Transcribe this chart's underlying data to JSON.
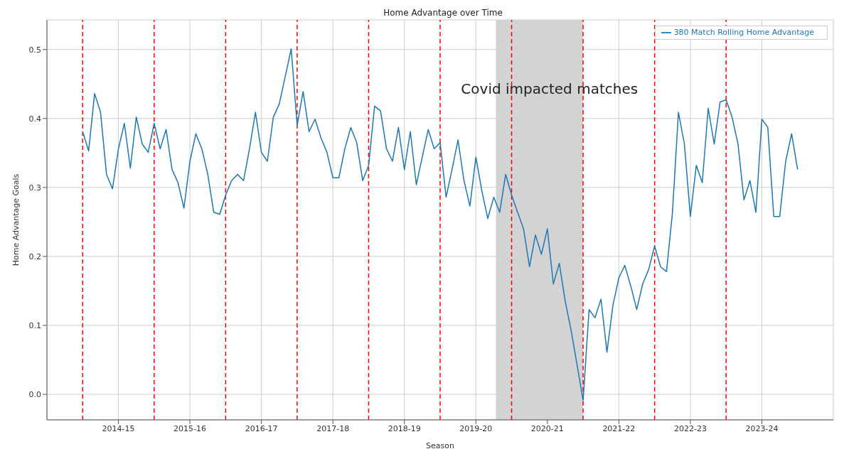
{
  "chart_data": {
    "type": "line",
    "title": "Home Advantage over Time",
    "xlabel": "Season",
    "ylabel": "Home Advantage Goals",
    "categories": [
      null,
      null,
      null,
      null,
      null,
      null,
      "2014-15",
      null,
      null,
      null,
      null,
      null,
      null,
      null,
      null,
      null,
      null,
      null,
      "2015-16",
      null,
      null,
      null,
      null,
      null,
      null,
      null,
      null,
      null,
      null,
      null,
      "2016-17",
      null,
      null,
      null,
      null,
      null,
      null,
      null,
      null,
      null,
      null,
      null,
      "2017-18",
      null,
      null,
      null,
      null,
      null,
      null,
      null,
      null,
      null,
      null,
      null,
      "2018-19",
      null,
      null,
      null,
      null,
      null,
      null,
      null,
      null,
      null,
      null,
      null,
      "2019-20",
      null,
      null,
      null,
      null,
      null,
      null,
      null,
      null,
      null,
      null,
      null,
      "2020-21",
      null,
      null,
      null,
      null,
      null,
      null,
      null,
      null,
      null,
      null,
      null,
      "2021-22",
      null,
      null,
      null,
      null,
      null,
      null,
      null,
      null,
      null,
      null,
      null,
      "2022-23",
      null,
      null,
      null,
      null,
      null,
      null,
      null,
      null,
      null,
      null,
      null,
      "2023-24",
      null,
      null,
      null,
      null,
      null,
      null
    ],
    "ylim": [
      -0.037,
      0.543
    ],
    "yticks": [
      {
        "value": 0,
        "label": "0.0"
      },
      0.1,
      0.2,
      0.3,
      0.4,
      0.5
    ],
    "grid": true,
    "legend": "top right",
    "line_style": "solid",
    "series": [
      {
        "name": "380 Match Rolling Home Advantage",
        "color": "#1f77b4",
        "values": [
          0.381,
          0.353,
          0.436,
          0.409,
          0.319,
          0.298,
          0.356,
          0.393,
          0.328,
          0.402,
          0.363,
          0.351,
          0.393,
          0.356,
          0.384,
          0.326,
          0.307,
          0.27,
          0.338,
          0.378,
          0.356,
          0.319,
          0.264,
          0.261,
          0.289,
          0.31,
          0.319,
          0.31,
          0.356,
          0.409,
          0.351,
          0.338,
          0.402,
          0.421,
          0.461,
          0.501,
          0.39,
          0.439,
          0.381,
          0.399,
          0.372,
          0.351,
          0.314,
          0.314,
          0.356,
          0.387,
          0.365,
          0.31,
          0.332,
          0.418,
          0.411,
          0.356,
          0.338,
          0.387,
          0.326,
          0.381,
          0.304,
          0.344,
          0.384,
          0.356,
          0.365,
          0.286,
          0.326,
          0.369,
          0.31,
          0.273,
          0.344,
          0.295,
          0.255,
          0.286,
          0.264,
          0.319,
          0.289,
          0.264,
          0.24,
          0.185,
          0.231,
          0.203,
          0.24,
          0.16,
          0.19,
          0.135,
          0.092,
          0.042,
          -0.009,
          0.123,
          0.111,
          0.138,
          0.061,
          0.129,
          0.169,
          0.187,
          0.157,
          0.123,
          0.16,
          0.181,
          0.215,
          0.185,
          0.178,
          0.264,
          0.409,
          0.363,
          0.258,
          0.332,
          0.307,
          0.415,
          0.363,
          0.424,
          0.427,
          0.402,
          0.363,
          0.282,
          0.31,
          0.264,
          0.399,
          0.387,
          0.258,
          0.258,
          0.338,
          0.378,
          0.326
        ]
      }
    ],
    "annotations": [
      "Covid impacted matches"
    ]
  }
}
